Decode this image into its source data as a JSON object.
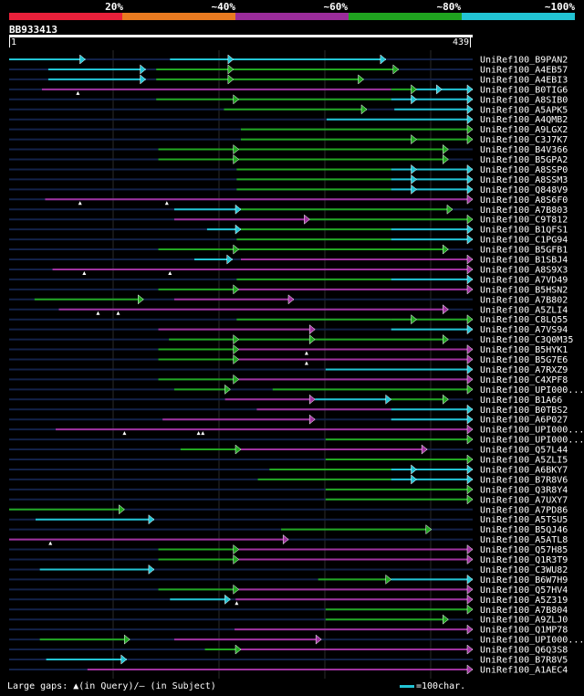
{
  "legend": {
    "segments": [
      {
        "label": "20%",
        "color": "#e8203a"
      },
      {
        "label": "~40%",
        "color": "#e87a20"
      },
      {
        "label": "~60%",
        "color": "#9a2c9a"
      },
      {
        "label": "~80%",
        "color": "#1fa31f"
      },
      {
        "label": "~100%",
        "color": "#22c4d4"
      }
    ]
  },
  "colors": {
    "cyan": "#22c4d4",
    "green": "#22a822",
    "purple": "#a032a0",
    "background": "#000000",
    "grid": "#2a2a2a",
    "dim": "#13224a"
  },
  "query": {
    "name": "BB933413",
    "start": "1",
    "end": "439",
    "length": 439
  },
  "hits": [
    {
      "label": "UniRef100_B9PAN2",
      "segments": [
        [
          1,
          73,
          "cyan"
        ],
        [
          153,
          357,
          "cyan"
        ]
      ],
      "arrows": [
        73,
        213,
        357
      ],
      "gaps": [],
      "dim": []
    },
    {
      "label": "UniRef100_A4EB57",
      "segments": [
        [
          38,
          130,
          "cyan"
        ],
        [
          140,
          213,
          "green"
        ],
        [
          213,
          369,
          "green"
        ]
      ],
      "arrows": [
        130,
        213,
        369
      ],
      "gaps": [],
      "dim": []
    },
    {
      "label": "UniRef100_A4EBI3",
      "segments": [
        [
          38,
          130,
          "cyan"
        ],
        [
          140,
          213,
          "green"
        ],
        [
          213,
          336,
          "green"
        ]
      ],
      "arrows": [
        130,
        213,
        336
      ],
      "gaps": [],
      "dim": []
    },
    {
      "label": "UniRef100_B0TIG6",
      "segments": [
        [
          32,
          362,
          "purple"
        ],
        [
          362,
          386,
          "green"
        ],
        [
          386,
          439,
          "cyan"
        ]
      ],
      "arrows": [
        386,
        410,
        439
      ],
      "gaps": [
        66
      ],
      "dim": []
    },
    {
      "label": "UniRef100_A8SIB0",
      "segments": [
        [
          140,
          218,
          "green"
        ],
        [
          218,
          362,
          "green"
        ],
        [
          362,
          439,
          "cyan"
        ]
      ],
      "arrows": [
        218,
        386,
        439
      ],
      "gaps": [],
      "dim": [
        [
          1,
          140
        ]
      ]
    },
    {
      "label": "UniRef100_A5APK5",
      "segments": [
        [
          204,
          339,
          "green"
        ],
        [
          365,
          439,
          "cyan"
        ]
      ],
      "arrows": [
        339,
        439
      ],
      "gaps": [],
      "dim": []
    },
    {
      "label": "UniRef100_A4QMB2",
      "segments": [
        [
          301,
          439,
          "cyan"
        ]
      ],
      "arrows": [
        439
      ],
      "gaps": [],
      "dim": [
        [
          1,
          301
        ]
      ]
    },
    {
      "label": "UniRef100_A9LGX2",
      "segments": [
        [
          220,
          439,
          "green"
        ]
      ],
      "arrows": [
        439
      ],
      "gaps": [],
      "dim": [
        [
          1,
          220
        ]
      ]
    },
    {
      "label": "UniRef100_C3J7K7",
      "segments": [
        [
          220,
          386,
          "green"
        ],
        [
          386,
          439,
          "green"
        ]
      ],
      "arrows": [
        386,
        439
      ],
      "gaps": [],
      "dim": [
        [
          1,
          220
        ]
      ]
    },
    {
      "label": "UniRef100_B4V366",
      "segments": [
        [
          142,
          218,
          "green"
        ],
        [
          218,
          416,
          "green"
        ]
      ],
      "arrows": [
        218,
        416
      ],
      "gaps": [],
      "dim": []
    },
    {
      "label": "UniRef100_B5GPA2",
      "segments": [
        [
          142,
          218,
          "green"
        ],
        [
          218,
          416,
          "green"
        ]
      ],
      "arrows": [
        218,
        416
      ],
      "gaps": [],
      "dim": []
    },
    {
      "label": "UniRef100_A8SSP0",
      "segments": [
        [
          216,
          362,
          "green"
        ],
        [
          362,
          439,
          "cyan"
        ]
      ],
      "arrows": [
        386,
        439
      ],
      "gaps": [],
      "dim": [
        [
          1,
          216
        ]
      ]
    },
    {
      "label": "UniRef100_A8SSM3",
      "segments": [
        [
          216,
          362,
          "green"
        ],
        [
          362,
          439,
          "cyan"
        ]
      ],
      "arrows": [
        386,
        439
      ],
      "gaps": [],
      "dim": [
        [
          1,
          216
        ]
      ]
    },
    {
      "label": "UniRef100_Q848V9",
      "segments": [
        [
          216,
          362,
          "green"
        ],
        [
          362,
          439,
          "cyan"
        ]
      ],
      "arrows": [
        386,
        439
      ],
      "gaps": [],
      "dim": [
        [
          1,
          216
        ]
      ]
    },
    {
      "label": "UniRef100_A8S6F0",
      "segments": [
        [
          35,
          439,
          "purple"
        ]
      ],
      "arrows": [
        439
      ],
      "gaps": [
        68,
        150
      ],
      "dim": []
    },
    {
      "label": "UniRef100_A7B803",
      "segments": [
        [
          157,
          220,
          "cyan"
        ],
        [
          220,
          420,
          "green"
        ]
      ],
      "arrows": [
        220,
        420
      ],
      "gaps": [],
      "dim": []
    },
    {
      "label": "UniRef100_C9T812",
      "segments": [
        [
          157,
          285,
          "purple"
        ],
        [
          285,
          439,
          "green"
        ]
      ],
      "arrows": [
        285,
        439
      ],
      "gaps": [],
      "dim": []
    },
    {
      "label": "UniRef100_B1QFS1",
      "segments": [
        [
          188,
          220,
          "cyan"
        ],
        [
          220,
          362,
          "green"
        ],
        [
          362,
          439,
          "cyan"
        ]
      ],
      "arrows": [
        220,
        439
      ],
      "gaps": [],
      "dim": []
    },
    {
      "label": "UniRef100_C1PG94",
      "segments": [
        [
          216,
          362,
          "green"
        ],
        [
          362,
          439,
          "cyan"
        ]
      ],
      "arrows": [
        439
      ],
      "gaps": [],
      "dim": [
        [
          1,
          216
        ]
      ]
    },
    {
      "label": "UniRef100_B5GFB1",
      "segments": [
        [
          142,
          218,
          "green"
        ],
        [
          218,
          416,
          "green"
        ]
      ],
      "arrows": [
        218,
        416
      ],
      "gaps": [],
      "dim": []
    },
    {
      "label": "UniRef100_B1SBJ4",
      "segments": [
        [
          176,
          212,
          "cyan"
        ],
        [
          220,
          439,
          "purple"
        ]
      ],
      "arrows": [
        212,
        439
      ],
      "gaps": [],
      "dim": []
    },
    {
      "label": "UniRef100_A8S9X3",
      "segments": [
        [
          42,
          439,
          "purple"
        ]
      ],
      "arrows": [
        439
      ],
      "gaps": [
        72,
        153
      ],
      "dim": []
    },
    {
      "label": "UniRef100_A7VD49",
      "segments": [
        [
          216,
          362,
          "green"
        ],
        [
          362,
          439,
          "cyan"
        ]
      ],
      "arrows": [
        439
      ],
      "gaps": [],
      "dim": [
        [
          1,
          216
        ]
      ]
    },
    {
      "label": "UniRef100_B5HSN2",
      "segments": [
        [
          142,
          218,
          "green"
        ],
        [
          218,
          439,
          "purple"
        ]
      ],
      "arrows": [
        218,
        439
      ],
      "gaps": [],
      "dim": []
    },
    {
      "label": "UniRef100_A7B802",
      "segments": [
        [
          25,
          128,
          "green"
        ],
        [
          157,
          270,
          "purple"
        ]
      ],
      "arrows": [
        128,
        270
      ],
      "gaps": [],
      "dim": []
    },
    {
      "label": "UniRef100_A5ZLI4",
      "segments": [
        [
          48,
          416,
          "purple"
        ]
      ],
      "arrows": [
        416
      ],
      "gaps": [
        85,
        104
      ],
      "dim": []
    },
    {
      "label": "UniRef100_C8LQ55",
      "segments": [
        [
          216,
          362,
          "green"
        ],
        [
          362,
          386,
          "green"
        ],
        [
          386,
          439,
          "green"
        ]
      ],
      "arrows": [
        386,
        439
      ],
      "gaps": [],
      "dim": []
    },
    {
      "label": "UniRef100_A7VS94",
      "segments": [
        [
          142,
          290,
          "purple"
        ],
        [
          362,
          439,
          "cyan"
        ]
      ],
      "arrows": [
        290,
        439
      ],
      "gaps": [],
      "dim": []
    },
    {
      "label": "UniRef100_C3Q0M35",
      "segments": [
        [
          152,
          218,
          "green"
        ],
        [
          218,
          270,
          "green"
        ],
        [
          270,
          416,
          "green"
        ]
      ],
      "arrows": [
        218,
        290,
        416
      ],
      "gaps": [],
      "dim": []
    },
    {
      "label": "UniRef100_B5HYK1",
      "segments": [
        [
          142,
          218,
          "green"
        ],
        [
          218,
          439,
          "purple"
        ]
      ],
      "arrows": [
        218,
        439
      ],
      "gaps": [
        282
      ],
      "dim": []
    },
    {
      "label": "UniRef100_B5G7E6",
      "segments": [
        [
          142,
          218,
          "green"
        ],
        [
          218,
          439,
          "purple"
        ]
      ],
      "arrows": [
        218,
        439
      ],
      "gaps": [
        282
      ],
      "dim": []
    },
    {
      "label": "UniRef100_A7RXZ9",
      "segments": [
        [
          300,
          439,
          "cyan"
        ]
      ],
      "arrows": [
        439
      ],
      "gaps": [],
      "dim": [
        [
          1,
          300
        ]
      ]
    },
    {
      "label": "UniRef100_C4XPF8",
      "segments": [
        [
          142,
          218,
          "green"
        ],
        [
          218,
          439,
          "purple"
        ]
      ],
      "arrows": [
        218,
        439
      ],
      "gaps": [],
      "dim": []
    },
    {
      "label": "UniRef100_UPI000...",
      "segments": [
        [
          157,
          210,
          "green"
        ],
        [
          250,
          439,
          "green"
        ]
      ],
      "arrows": [
        210,
        439
      ],
      "gaps": [],
      "dim": []
    },
    {
      "label": "UniRef100_B1A66",
      "segments": [
        [
          205,
          290,
          "purple"
        ],
        [
          290,
          362,
          "cyan"
        ],
        [
          362,
          416,
          "green"
        ]
      ],
      "arrows": [
        290,
        362,
        416
      ],
      "gaps": [],
      "dim": []
    },
    {
      "label": "UniRef100_B0TBS2",
      "segments": [
        [
          235,
          362,
          "purple"
        ],
        [
          362,
          439,
          "cyan"
        ]
      ],
      "arrows": [
        439
      ],
      "gaps": [],
      "dim": []
    },
    {
      "label": "UniRef100_A6P027",
      "segments": [
        [
          146,
          290,
          "purple"
        ],
        [
          362,
          439,
          "cyan"
        ]
      ],
      "arrows": [
        290,
        439
      ],
      "gaps": [],
      "dim": []
    },
    {
      "label": "UniRef100_UPI000...",
      "segments": [
        [
          45,
          439,
          "purple"
        ]
      ],
      "arrows": [
        439
      ],
      "gaps": [
        110,
        180,
        184
      ],
      "dim": []
    },
    {
      "label": "UniRef100_UPI000...",
      "segments": [
        [
          300,
          439,
          "green"
        ]
      ],
      "arrows": [
        439
      ],
      "gaps": [],
      "dim": [
        [
          1,
          300
        ]
      ]
    },
    {
      "label": "UniRef100_Q57L44",
      "segments": [
        [
          163,
          220,
          "green"
        ],
        [
          220,
          396,
          "purple"
        ]
      ],
      "arrows": [
        220,
        396
      ],
      "gaps": [],
      "dim": []
    },
    {
      "label": "UniRef100_A5ZLI5",
      "segments": [
        [
          300,
          439,
          "green"
        ]
      ],
      "arrows": [
        439
      ],
      "gaps": [],
      "dim": [
        [
          1,
          300
        ]
      ]
    },
    {
      "label": "UniRef100_A6BKY7",
      "segments": [
        [
          247,
          362,
          "green"
        ],
        [
          362,
          439,
          "cyan"
        ]
      ],
      "arrows": [
        386,
        439
      ],
      "gaps": [],
      "dim": []
    },
    {
      "label": "UniRef100_B7R8V6",
      "segments": [
        [
          236,
          362,
          "green"
        ],
        [
          362,
          439,
          "cyan"
        ]
      ],
      "arrows": [
        386,
        439
      ],
      "gaps": [],
      "dim": []
    },
    {
      "label": "UniRef100_Q3R8Y4",
      "segments": [
        [
          300,
          439,
          "green"
        ]
      ],
      "arrows": [
        439
      ],
      "gaps": [],
      "dim": [
        [
          1,
          300
        ]
      ]
    },
    {
      "label": "UniRef100_A7UXY7",
      "segments": [
        [
          300,
          439,
          "green"
        ]
      ],
      "arrows": [
        439
      ],
      "gaps": [],
      "dim": [
        [
          1,
          300
        ]
      ]
    },
    {
      "label": "UniRef100_A7PD86",
      "segments": [
        [
          1,
          110,
          "green"
        ]
      ],
      "arrows": [
        110
      ],
      "gaps": [],
      "dim": []
    },
    {
      "label": "UniRef100_A5TSU5",
      "segments": [
        [
          26,
          138,
          "cyan"
        ]
      ],
      "arrows": [
        138
      ],
      "gaps": [],
      "dim": []
    },
    {
      "label": "UniRef100_B5QJ46",
      "segments": [
        [
          258,
          400,
          "green"
        ]
      ],
      "arrows": [
        400
      ],
      "gaps": [],
      "dim": []
    },
    {
      "label": "UniRef100_A5ATL8",
      "segments": [
        [
          1,
          265,
          "purple"
        ]
      ],
      "arrows": [
        265
      ],
      "gaps": [
        40
      ],
      "dim": []
    },
    {
      "label": "UniRef100_Q57H85",
      "segments": [
        [
          142,
          218,
          "green"
        ],
        [
          218,
          439,
          "purple"
        ]
      ],
      "arrows": [
        218,
        439
      ],
      "gaps": [],
      "dim": []
    },
    {
      "label": "UniRef100_Q1R3T9",
      "segments": [
        [
          142,
          218,
          "green"
        ],
        [
          218,
          439,
          "purple"
        ]
      ],
      "arrows": [
        218,
        439
      ],
      "gaps": [],
      "dim": []
    },
    {
      "label": "UniRef100_C3WU82",
      "segments": [
        [
          30,
          138,
          "cyan"
        ]
      ],
      "arrows": [
        138
      ],
      "gaps": [],
      "dim": []
    },
    {
      "label": "UniRef100_B6W7H9",
      "segments": [
        [
          293,
          362,
          "green"
        ],
        [
          362,
          439,
          "cyan"
        ]
      ],
      "arrows": [
        362,
        439
      ],
      "gaps": [],
      "dim": []
    },
    {
      "label": "UniRef100_Q57HV4",
      "segments": [
        [
          142,
          218,
          "green"
        ],
        [
          218,
          439,
          "purple"
        ]
      ],
      "arrows": [
        218,
        439
      ],
      "gaps": [],
      "dim": []
    },
    {
      "label": "UniRef100_A5Z319",
      "segments": [
        [
          153,
          210,
          "cyan"
        ],
        [
          215,
          439,
          "purple"
        ]
      ],
      "arrows": [
        210,
        439
      ],
      "gaps": [
        216
      ],
      "dim": []
    },
    {
      "label": "UniRef100_A7B804",
      "segments": [
        [
          300,
          439,
          "green"
        ]
      ],
      "arrows": [
        439
      ],
      "gaps": [],
      "dim": [
        [
          1,
          300
        ]
      ]
    },
    {
      "label": "UniRef100_A9ZLJ0",
      "segments": [
        [
          300,
          416,
          "green"
        ]
      ],
      "arrows": [
        416
      ],
      "gaps": [],
      "dim": [
        [
          1,
          300
        ]
      ]
    },
    {
      "label": "UniRef100_Q1MP78",
      "segments": [
        [
          214,
          439,
          "purple"
        ]
      ],
      "arrows": [
        439
      ],
      "gaps": [],
      "dim": []
    },
    {
      "label": "UniRef100_UPI000...",
      "segments": [
        [
          30,
          115,
          "green"
        ],
        [
          157,
          296,
          "purple"
        ]
      ],
      "arrows": [
        115,
        296
      ],
      "gaps": [],
      "dim": []
    },
    {
      "label": "UniRef100_Q6Q3S8",
      "segments": [
        [
          186,
          220,
          "green"
        ],
        [
          220,
          439,
          "purple"
        ]
      ],
      "arrows": [
        220,
        439
      ],
      "gaps": [],
      "dim": []
    },
    {
      "label": "UniRef100_B7R8V5",
      "segments": [
        [
          36,
          112,
          "cyan"
        ]
      ],
      "arrows": [
        112
      ],
      "gaps": [],
      "dim": []
    },
    {
      "label": "UniRef100_A1AEC4",
      "segments": [
        [
          75,
          439,
          "purple"
        ]
      ],
      "arrows": [
        439
      ],
      "gaps": [],
      "dim": []
    }
  ],
  "footer": {
    "gaps_text": "Large gaps: ▲(in Query)/– (in Subject)",
    "scale_text": "=100char."
  }
}
